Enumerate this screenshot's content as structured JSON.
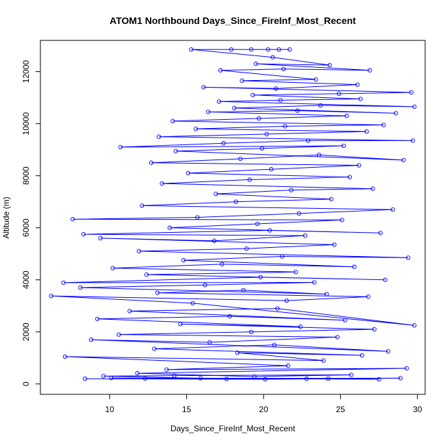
{
  "chart_data": {
    "type": "scatter",
    "title": "ATOM1 Northbound Days_Since_FireInf_Most_Recent",
    "xlabel": "Days_Since_FireInf_Most_Recent",
    "ylabel": "Altitude (m)",
    "xlim": [
      5.5,
      30.5
    ],
    "ylim": [
      -400,
      13200
    ],
    "xticks": [
      10,
      15,
      20,
      25,
      30
    ],
    "yticks": [
      0,
      2000,
      4000,
      6000,
      8000,
      10000,
      12000
    ],
    "xtick_labels": [
      "10",
      "15",
      "20",
      "25",
      "30"
    ],
    "ytick_labels": [
      "0",
      "2000",
      "4000",
      "6000",
      "8000",
      "10000",
      "12000"
    ],
    "series_color": "#0000ff",
    "marker": "open-circle",
    "connected": true,
    "grid": false,
    "legend": "none",
    "series": [
      {
        "values": [
          [
            8.4,
            200
          ],
          [
            20.1,
            180
          ],
          [
            28.9,
            220
          ],
          [
            12.3,
            210
          ],
          [
            17.6,
            190
          ],
          [
            24.2,
            205
          ],
          [
            10.1,
            230
          ],
          [
            22.8,
            200
          ],
          [
            27.5,
            180
          ],
          [
            15.9,
            220
          ],
          [
            9.6,
            300
          ],
          [
            14.2,
            320
          ],
          [
            25.7,
            350
          ],
          [
            19.4,
            280
          ],
          [
            11.8,
            410
          ],
          [
            29.3,
            600
          ],
          [
            13.7,
            550
          ],
          [
            21.6,
            700
          ],
          [
            7.1,
            1050
          ],
          [
            23.9,
            900
          ],
          [
            18.3,
            1200
          ],
          [
            26.4,
            1100
          ],
          [
            12.9,
            1350
          ],
          [
            20.7,
            1500
          ],
          [
            28.1,
            1250
          ],
          [
            8.8,
            1700
          ],
          [
            16.5,
            1600
          ],
          [
            24.8,
            1800
          ],
          [
            10.6,
            1900
          ],
          [
            19.2,
            2000
          ],
          [
            27.2,
            2100
          ],
          [
            14.6,
            2300
          ],
          [
            22.4,
            2200
          ],
          [
            9.2,
            2500
          ],
          [
            17.8,
            2600
          ],
          [
            25.3,
            2450
          ],
          [
            11.3,
            2800
          ],
          [
            20.9,
            2900
          ],
          [
            29.8,
            2250
          ],
          [
            15.4,
            3100
          ],
          [
            6.2,
            3380
          ],
          [
            21.5,
            3200
          ],
          [
            26.8,
            3350
          ],
          [
            13.1,
            3500
          ],
          [
            18.7,
            3600
          ],
          [
            24.1,
            3450
          ],
          [
            8.1,
            3700
          ],
          [
            16.2,
            3800
          ],
          [
            23.3,
            3900
          ],
          [
            7.0,
            3890
          ],
          [
            19.8,
            4100
          ],
          [
            27.9,
            4000
          ],
          [
            12.4,
            4200
          ],
          [
            22.1,
            4300
          ],
          [
            10.2,
            4450
          ],
          [
            17.3,
            4600
          ],
          [
            25.9,
            4500
          ],
          [
            14.8,
            4750
          ],
          [
            21.2,
            4900
          ],
          [
            29.4,
            4850
          ],
          [
            11.9,
            5100
          ],
          [
            18.9,
            5200
          ],
          [
            24.6,
            5350
          ],
          [
            9.4,
            5600
          ],
          [
            16.8,
            5500
          ],
          [
            22.7,
            5700
          ],
          [
            8.3,
            5750
          ],
          [
            20.4,
            5900
          ],
          [
            27.6,
            5800
          ],
          [
            13.9,
            6000
          ],
          [
            19.6,
            6150
          ],
          [
            25.1,
            6300
          ],
          [
            7.6,
            6330
          ],
          [
            15.7,
            6400
          ],
          [
            22.3,
            6550
          ],
          [
            28.4,
            6700
          ],
          [
            12.1,
            6850
          ],
          [
            18.2,
            7000
          ],
          [
            24.4,
            7100
          ],
          [
            16.9,
            7300
          ],
          [
            21.8,
            7450
          ],
          [
            27.1,
            7500
          ],
          [
            13.4,
            7700
          ],
          [
            19.1,
            7850
          ],
          [
            25.6,
            7950
          ],
          [
            15.1,
            8100
          ],
          [
            20.5,
            8250
          ],
          [
            26.2,
            8400
          ],
          [
            12.7,
            8500
          ],
          [
            18.5,
            8650
          ],
          [
            23.6,
            8800
          ],
          [
            29.1,
            8600
          ],
          [
            14.3,
            8950
          ],
          [
            19.9,
            9050
          ],
          [
            25.2,
            9150
          ],
          [
            10.7,
            9100
          ],
          [
            17.4,
            9250
          ],
          [
            22.9,
            9350
          ],
          [
            29.7,
            9350
          ],
          [
            13.2,
            9500
          ],
          [
            20.2,
            9600
          ],
          [
            26.7,
            9700
          ],
          [
            15.6,
            9800
          ],
          [
            21.4,
            9900
          ],
          [
            27.8,
            9950
          ],
          [
            14.1,
            10100
          ],
          [
            19.7,
            10200
          ],
          [
            25.4,
            10300
          ],
          [
            16.4,
            10450
          ],
          [
            22.2,
            10500
          ],
          [
            28.6,
            10400
          ],
          [
            18.1,
            10600
          ],
          [
            23.7,
            10700
          ],
          [
            29.8,
            10650
          ],
          [
            17.1,
            10850
          ],
          [
            21.1,
            10900
          ],
          [
            26.3,
            10950
          ],
          [
            19.3,
            11100
          ],
          [
            24.9,
            11150
          ],
          [
            29.6,
            11200
          ],
          [
            16.1,
            11400
          ],
          [
            20.8,
            11350
          ],
          [
            26.1,
            11500
          ],
          [
            18.6,
            11650
          ],
          [
            23.4,
            11700
          ],
          [
            17.2,
            12050
          ],
          [
            21.3,
            12100
          ],
          [
            26.9,
            12050
          ],
          [
            19.5,
            12300
          ],
          [
            24.3,
            12250
          ],
          [
            20.6,
            12550
          ],
          [
            15.3,
            12850
          ],
          [
            17.9,
            12850
          ],
          [
            19.2,
            12850
          ],
          [
            20.3,
            12850
          ],
          [
            21.0,
            12850
          ],
          [
            21.7,
            12850
          ]
        ]
      }
    ]
  }
}
